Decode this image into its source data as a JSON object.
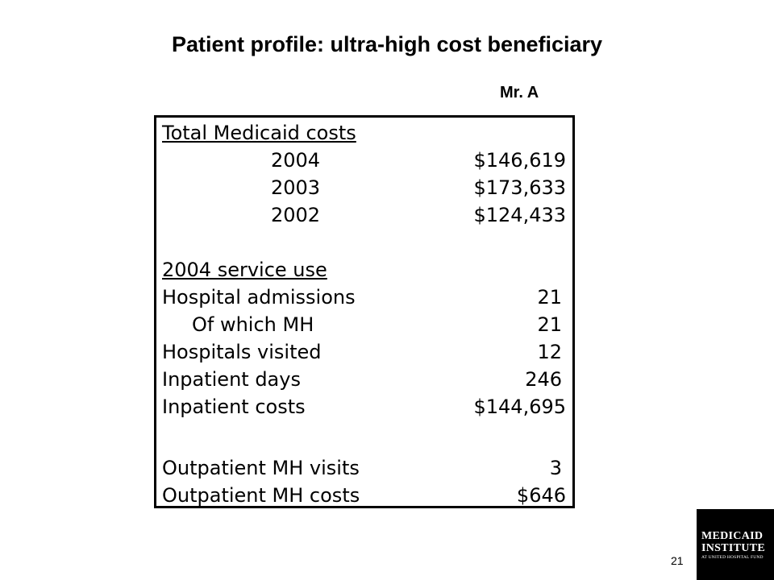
{
  "slide": {
    "title": "Patient profile:  ultra-high cost beneficiary",
    "subject": "Mr. A",
    "page_number": "21"
  },
  "table": {
    "costs_heading": "Total Medicaid costs",
    "costs": [
      {
        "year": "2004",
        "value": "$146,619"
      },
      {
        "year": "2003",
        "value": "$173,633"
      },
      {
        "year": "2002",
        "value": "$124,433"
      }
    ],
    "service_heading": "2004 service use",
    "service": [
      {
        "label": "Hospital admissions",
        "value": "21"
      },
      {
        "label": "Of which MH",
        "value": "21"
      },
      {
        "label": "Hospitals visited",
        "value": "12"
      },
      {
        "label": "Inpatient days",
        "value": "246"
      },
      {
        "label": "Inpatient costs",
        "value": "$144,695"
      }
    ],
    "outpatient": [
      {
        "label": "Outpatient MH visits",
        "value": "3"
      },
      {
        "label": "Outpatient MH costs",
        "value": "$646"
      }
    ]
  },
  "logo": {
    "line1": "MEDICAID",
    "line2": "INSTITUTE",
    "line3": "AT UNITED HOSPITAL FUND"
  }
}
